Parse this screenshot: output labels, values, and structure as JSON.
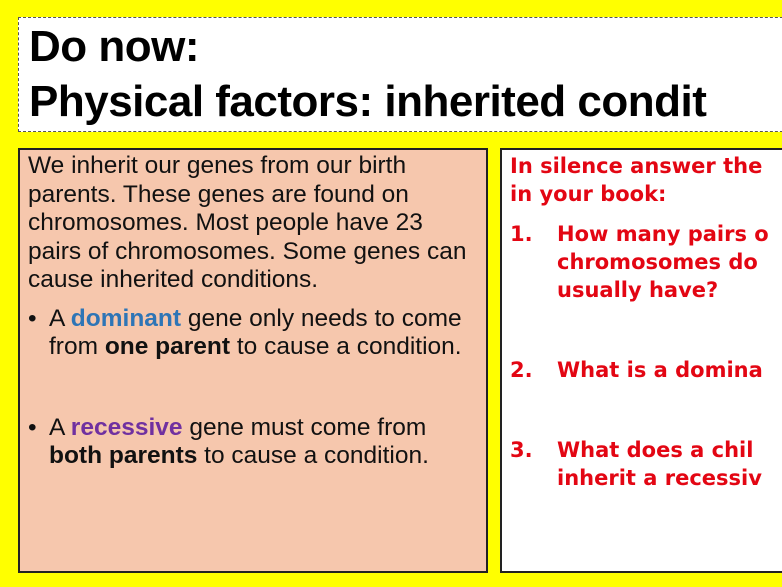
{
  "title": {
    "line1": "Do now:",
    "line2": "Physical factors: inherited condit"
  },
  "left": {
    "intro": "We inherit our genes from our birth parents. These genes are found on chromosomes. Most people have 23 pairs of chromosomes. Some genes can cause inherited conditions.",
    "bullets": [
      {
        "a": "A ",
        "key": "dominant",
        "b": " gene only needs to come from ",
        "bold": "one parent",
        "c": " to cause a condition."
      },
      {
        "a": "A ",
        "key": "recessive",
        "b": " gene must come from ",
        "bold": "both parents",
        "c": " to cause a condition."
      }
    ],
    "bullet_char": "•"
  },
  "right": {
    "heading1": "In silence answer the",
    "heading2": "in your book:",
    "questions": [
      {
        "num": "1.",
        "l1": "How many pairs o",
        "l2": "chromosomes do",
        "l3": "usually have?"
      },
      {
        "num": "2.",
        "l1": "What is a domina"
      },
      {
        "num": "3.",
        "l1": "What does a chil",
        "l2": "inherit a recessiv"
      }
    ]
  },
  "colors": {
    "background": "#ffff00",
    "dominant": "#2e75b6",
    "recessive": "#7030a0",
    "questions": "#e30613",
    "panel": "#f6c7ad"
  }
}
